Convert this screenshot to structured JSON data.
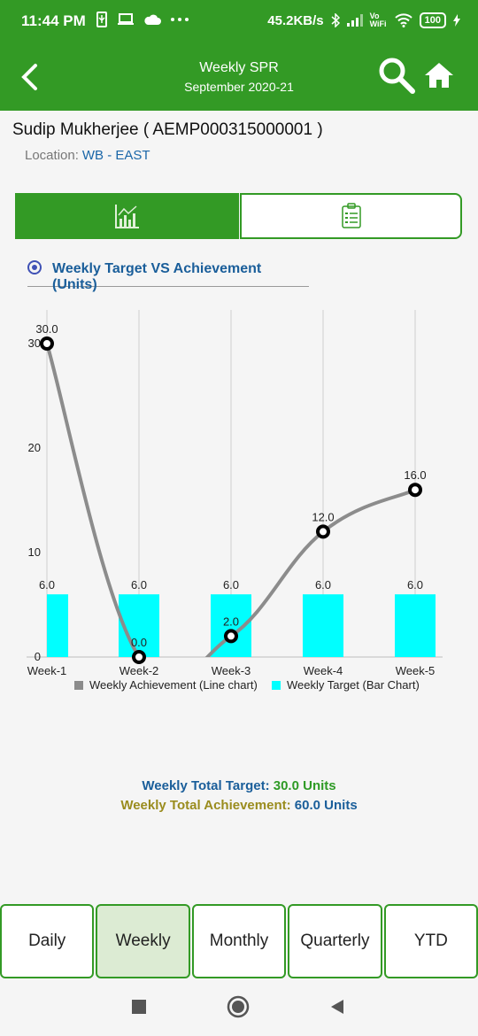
{
  "status_bar": {
    "time": "11:44 PM",
    "speed": "45.2KB/s",
    "network": "Vo WiFi",
    "battery": "100"
  },
  "header": {
    "title": "Weekly SPR",
    "subtitle": "September 2020-21"
  },
  "employee": {
    "name": "Sudip Mukherjee ( AEMP000315000001 )",
    "location_label": "Location:",
    "location_value": "WB - EAST"
  },
  "chart_option": "Weekly Target VS Achievement (Units)",
  "chart_data": {
    "type": "bar",
    "categories": [
      "Week-1",
      "Week-2",
      "Week-3",
      "Week-4",
      "Week-5"
    ],
    "series": [
      {
        "name": "Weekly Target (Bar Chart)",
        "type": "bar",
        "color": "#00ffff",
        "values": [
          6.0,
          6.0,
          6.0,
          6.0,
          6.0
        ]
      },
      {
        "name": "Weekly Achievement (Line chart)",
        "type": "line",
        "color": "#8c8c8c",
        "values": [
          30.0,
          0.0,
          2.0,
          12.0,
          16.0
        ]
      }
    ],
    "y_ticks": [
      0,
      10,
      20,
      30
    ],
    "ylim": [
      0,
      32
    ],
    "legend": "bottom",
    "grid": "vertical"
  },
  "totals": {
    "target_label": "Weekly Total Target:",
    "target_value": "30.0 Units",
    "achievement_label": "Weekly Total Achievement:",
    "achievement_value": "60.0 Units"
  },
  "periods": [
    "Daily",
    "Weekly",
    "Monthly",
    "Quarterly",
    "YTD"
  ],
  "selected_period": "Weekly"
}
